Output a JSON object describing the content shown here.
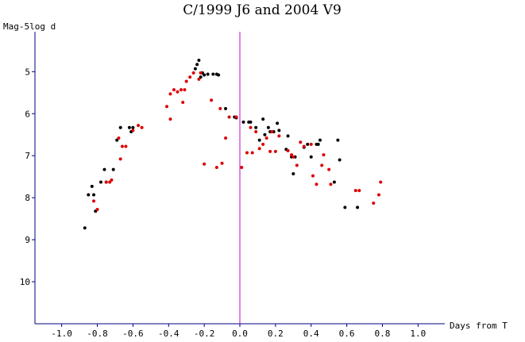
{
  "chart_data": {
    "type": "scatter",
    "title": "C/1999 J6 and 2004 V9",
    "xlabel": "Days from T",
    "ylabel": "Mag-5log d",
    "xlim": [
      -1.15,
      1.15
    ],
    "ylim": [
      11.0,
      4.05
    ],
    "y_inverted": true,
    "x_ticks": [
      -1.0,
      -0.8,
      -0.6,
      -0.4,
      -0.2,
      0.0,
      0.2,
      0.4,
      0.6,
      0.8,
      1.0
    ],
    "x_tick_labels": [
      "-1.0",
      "-0.8",
      "-0.6",
      "-0.4",
      "-0.2",
      "0.0",
      "0.2",
      "0.4",
      "0.6",
      "0.8",
      "1.0"
    ],
    "y_ticks": [
      5,
      6,
      7,
      8,
      9,
      10
    ],
    "y_tick_labels": [
      "5",
      "6",
      "7",
      "8",
      "9",
      "10"
    ],
    "reference_line_x": 0.0,
    "colors": {
      "axis": "#000080",
      "reference_line": "#cc00cc",
      "black_series": "#000000",
      "red_series": "#dd0000"
    },
    "series": [
      {
        "color": "#000000",
        "points": [
          [
            -0.87,
            8.72
          ],
          [
            -0.85,
            7.93
          ],
          [
            -0.83,
            7.73
          ],
          [
            -0.82,
            7.93
          ],
          [
            -0.81,
            8.32
          ],
          [
            -0.78,
            7.63
          ],
          [
            -0.76,
            7.33
          ],
          [
            -0.75,
            7.63
          ],
          [
            -0.71,
            7.33
          ],
          [
            -0.69,
            6.63
          ],
          [
            -0.67,
            6.33
          ],
          [
            -0.62,
            6.33
          ],
          [
            -0.61,
            6.43
          ],
          [
            -0.6,
            6.33
          ],
          [
            -0.24,
            4.83
          ],
          [
            -0.25,
            4.93
          ],
          [
            -0.23,
            4.73
          ],
          [
            -0.22,
            5.13
          ],
          [
            -0.21,
            5.03
          ],
          [
            -0.2,
            5.08
          ],
          [
            -0.18,
            5.06
          ],
          [
            -0.15,
            5.06
          ],
          [
            -0.13,
            5.06
          ],
          [
            -0.12,
            5.08
          ],
          [
            -0.08,
            5.88
          ],
          [
            -0.03,
            6.08
          ],
          [
            -0.02,
            6.1
          ],
          [
            0.02,
            6.2
          ],
          [
            0.05,
            6.2
          ],
          [
            0.06,
            6.2
          ],
          [
            0.09,
            6.33
          ],
          [
            0.11,
            6.63
          ],
          [
            0.13,
            6.13
          ],
          [
            0.14,
            6.5
          ],
          [
            0.16,
            6.33
          ],
          [
            0.17,
            6.43
          ],
          [
            0.19,
            6.43
          ],
          [
            0.21,
            6.23
          ],
          [
            0.22,
            6.4
          ],
          [
            0.26,
            6.85
          ],
          [
            0.27,
            6.53
          ],
          [
            0.29,
            7.03
          ],
          [
            0.3,
            7.43
          ],
          [
            0.31,
            7.03
          ],
          [
            0.36,
            6.8
          ],
          [
            0.38,
            6.73
          ],
          [
            0.4,
            7.03
          ],
          [
            0.43,
            6.73
          ],
          [
            0.44,
            6.73
          ],
          [
            0.45,
            6.63
          ],
          [
            0.53,
            7.63
          ],
          [
            0.55,
            6.63
          ],
          [
            0.56,
            7.1
          ],
          [
            0.59,
            8.23
          ],
          [
            0.66,
            8.23
          ]
        ]
      },
      {
        "color": "#dd0000",
        "points": [
          [
            -0.8,
            8.28
          ],
          [
            -0.82,
            8.08
          ],
          [
            -0.75,
            7.63
          ],
          [
            -0.73,
            7.63
          ],
          [
            -0.72,
            7.58
          ],
          [
            -0.68,
            6.58
          ],
          [
            -0.67,
            7.08
          ],
          [
            -0.66,
            6.78
          ],
          [
            -0.64,
            6.78
          ],
          [
            -0.6,
            6.4
          ],
          [
            -0.57,
            6.28
          ],
          [
            -0.55,
            6.33
          ],
          [
            -0.41,
            5.83
          ],
          [
            -0.39,
            6.13
          ],
          [
            -0.39,
            5.53
          ],
          [
            -0.37,
            5.43
          ],
          [
            -0.35,
            5.48
          ],
          [
            -0.33,
            5.43
          ],
          [
            -0.32,
            5.73
          ],
          [
            -0.31,
            5.43
          ],
          [
            -0.3,
            5.23
          ],
          [
            -0.28,
            5.13
          ],
          [
            -0.26,
            5.03
          ],
          [
            -0.23,
            5.18
          ],
          [
            -0.22,
            5.03
          ],
          [
            -0.2,
            7.2
          ],
          [
            -0.16,
            5.68
          ],
          [
            -0.13,
            7.28
          ],
          [
            -0.11,
            5.88
          ],
          [
            -0.1,
            7.18
          ],
          [
            -0.08,
            6.58
          ],
          [
            -0.06,
            6.08
          ],
          [
            -0.02,
            6.08
          ],
          [
            0.01,
            7.28
          ],
          [
            0.04,
            6.93
          ],
          [
            0.06,
            6.33
          ],
          [
            0.07,
            6.93
          ],
          [
            0.09,
            6.43
          ],
          [
            0.11,
            6.83
          ],
          [
            0.13,
            6.73
          ],
          [
            0.15,
            6.58
          ],
          [
            0.17,
            6.9
          ],
          [
            0.18,
            6.43
          ],
          [
            0.2,
            6.9
          ],
          [
            0.22,
            6.53
          ],
          [
            0.27,
            6.88
          ],
          [
            0.29,
            6.98
          ],
          [
            0.3,
            7.03
          ],
          [
            0.32,
            7.23
          ],
          [
            0.34,
            6.68
          ],
          [
            0.36,
            6.78
          ],
          [
            0.4,
            6.73
          ],
          [
            0.41,
            7.48
          ],
          [
            0.43,
            7.68
          ],
          [
            0.46,
            7.23
          ],
          [
            0.47,
            6.98
          ],
          [
            0.5,
            7.33
          ],
          [
            0.51,
            7.68
          ],
          [
            0.65,
            7.83
          ],
          [
            0.67,
            7.83
          ],
          [
            0.75,
            8.13
          ],
          [
            0.78,
            7.93
          ],
          [
            0.79,
            7.63
          ]
        ]
      }
    ]
  }
}
